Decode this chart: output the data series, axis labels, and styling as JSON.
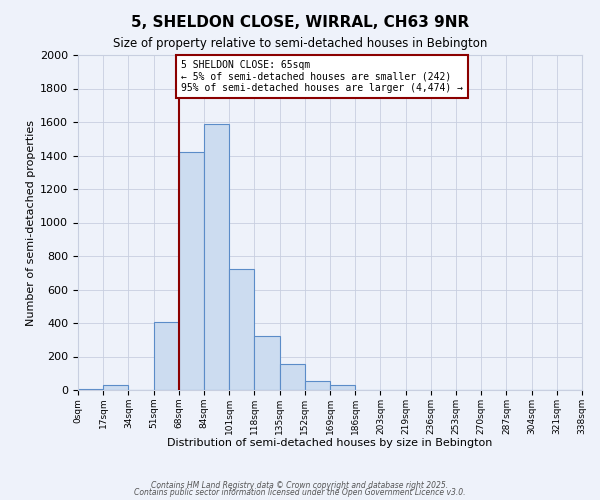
{
  "title": "5, SHELDON CLOSE, WIRRAL, CH63 9NR",
  "subtitle": "Size of property relative to semi-detached houses in Bebington",
  "xlabel": "Distribution of semi-detached houses by size in Bebington",
  "ylabel": "Number of semi-detached properties",
  "bin_labels": [
    "0sqm",
    "17sqm",
    "34sqm",
    "51sqm",
    "68sqm",
    "84sqm",
    "101sqm",
    "118sqm",
    "135sqm",
    "152sqm",
    "169sqm",
    "186sqm",
    "203sqm",
    "219sqm",
    "236sqm",
    "253sqm",
    "270sqm",
    "287sqm",
    "304sqm",
    "321sqm",
    "338sqm"
  ],
  "bar_heights": [
    5,
    30,
    0,
    405,
    1420,
    1590,
    725,
    325,
    155,
    55,
    30,
    0,
    0,
    0,
    0,
    0,
    0,
    0,
    0,
    0
  ],
  "bar_color": "#ccdcf0",
  "bar_edge_color": "#5b8cc8",
  "ylim": [
    0,
    2000
  ],
  "yticks": [
    0,
    200,
    400,
    600,
    800,
    1000,
    1200,
    1400,
    1600,
    1800,
    2000
  ],
  "property_line_x": 4,
  "annotation_title": "5 SHELDON CLOSE: 65sqm",
  "annotation_line1": "← 5% of semi-detached houses are smaller (242)",
  "annotation_line2": "95% of semi-detached houses are larger (4,474) →",
  "background_color": "#eef2fa",
  "grid_color": "#c8cfe0",
  "vline_color": "#8b0000",
  "footnote1": "Contains HM Land Registry data © Crown copyright and database right 2025.",
  "footnote2": "Contains public sector information licensed under the Open Government Licence v3.0."
}
